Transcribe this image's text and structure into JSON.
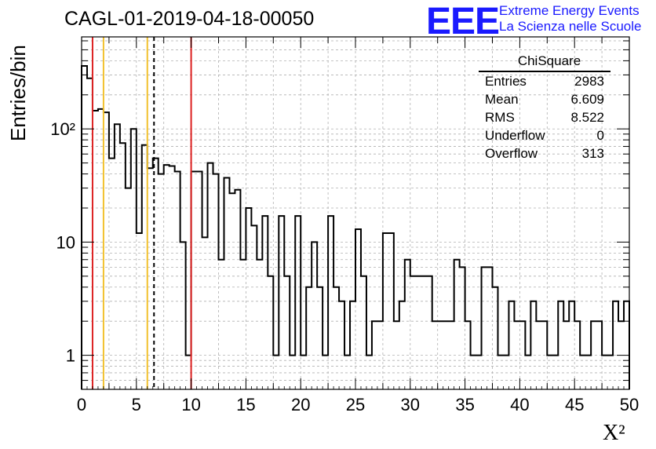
{
  "header": {
    "title": "CAGL-01-2019-04-18-00050",
    "logo_mark": "EEE",
    "logo_line1": "Extreme Energy Events",
    "logo_line2": "La Scienza nelle Scuole"
  },
  "stats_box": {
    "name": "ChiSquare",
    "rows": [
      {
        "label": "Entries",
        "value": "2983"
      },
      {
        "label": "Mean",
        "value": "6.609"
      },
      {
        "label": "RMS",
        "value": "8.522"
      },
      {
        "label": "Underflow",
        "value": "0"
      },
      {
        "label": "Overflow",
        "value": "313"
      }
    ]
  },
  "chart_data": {
    "type": "bar",
    "histogram": true,
    "title": "CAGL-01-2019-04-18-00050",
    "xlabel": "X²",
    "ylabel": "Entries/bin",
    "xlim": [
      0,
      50
    ],
    "ylim": [
      0.5,
      650
    ],
    "yscale": "log",
    "grid": true,
    "bin_width": 0.5,
    "x_ticks": [
      "0",
      "5",
      "10",
      "15",
      "20",
      "25",
      "30",
      "35",
      "40",
      "45",
      "50"
    ],
    "y_ticks": [
      {
        "value": 1,
        "label": "1"
      },
      {
        "value": 10,
        "label": "10"
      },
      {
        "value": 100,
        "label": "10²"
      }
    ],
    "values": [
      360,
      280,
      145,
      150,
      140,
      55,
      110,
      75,
      30,
      100,
      12,
      72,
      45,
      55,
      40,
      48,
      47,
      42,
      10,
      1,
      42,
      42,
      11,
      50,
      40,
      7,
      37,
      27,
      29,
      7,
      20,
      14,
      7,
      17,
      5,
      1,
      17,
      5,
      1,
      17,
      1,
      4,
      10,
      4,
      1,
      17,
      4,
      3,
      1,
      3,
      13,
      5,
      1,
      2,
      2,
      12,
      12,
      2,
      3,
      7,
      5,
      5,
      5,
      5,
      2,
      2,
      2,
      2,
      7,
      6,
      2,
      1,
      1,
      6,
      6,
      4,
      1,
      1,
      3,
      2,
      2,
      1,
      3,
      2,
      2,
      1,
      1,
      3,
      2,
      3,
      2,
      1,
      1,
      2,
      2,
      1,
      1,
      3,
      2,
      3
    ],
    "vertical_lines": [
      {
        "x": 1.0,
        "color": "#dd2222",
        "style": "solid"
      },
      {
        "x": 2.0,
        "color": "#f2c12e",
        "style": "solid"
      },
      {
        "x": 6.0,
        "color": "#f2c12e",
        "style": "solid"
      },
      {
        "x": 6.609,
        "color": "#000000",
        "style": "dashed"
      },
      {
        "x": 10.0,
        "color": "#dd2222",
        "style": "solid"
      }
    ]
  }
}
